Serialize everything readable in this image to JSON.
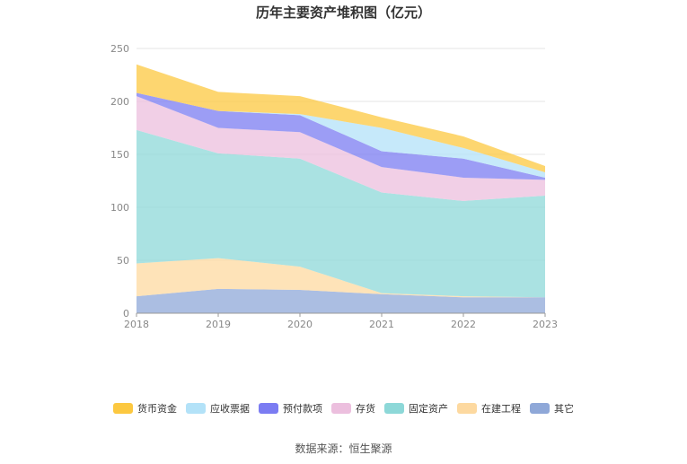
{
  "chart_data": {
    "type": "area",
    "stacked": true,
    "title": "历年主要资产堆积图（亿元）",
    "x": [
      "2018",
      "2019",
      "2020",
      "2021",
      "2022",
      "2023"
    ],
    "ylim": [
      0,
      250
    ],
    "yticks": [
      0,
      50,
      100,
      150,
      200,
      250
    ],
    "xlabel": "",
    "ylabel": "",
    "grid": true,
    "legend_position": "bottom",
    "series": [
      {
        "name": "其它",
        "color": "#8fa8d8",
        "values": [
          16,
          23,
          22,
          18,
          15,
          15
        ]
      },
      {
        "name": "在建工程",
        "color": "#fdd9a0",
        "values": [
          31,
          29,
          22,
          1,
          1,
          0
        ]
      },
      {
        "name": "固定资产",
        "color": "#8dd8d8",
        "values": [
          126,
          99,
          102,
          95,
          90,
          96
        ]
      },
      {
        "name": "存货",
        "color": "#ecbfde",
        "values": [
          32,
          24,
          25,
          24,
          22,
          15
        ]
      },
      {
        "name": "预付款项",
        "color": "#7b7cf2",
        "values": [
          3,
          16,
          16,
          15,
          18,
          2
        ]
      },
      {
        "name": "应收票据",
        "color": "#b3e2f8",
        "values": [
          0,
          0,
          1,
          22,
          10,
          5
        ]
      },
      {
        "name": "货币资金",
        "color": "#fcc840",
        "values": [
          27,
          18,
          17,
          10,
          11,
          6
        ]
      }
    ],
    "legend_order": [
      "货币资金",
      "应收票据",
      "预付款项",
      "存货",
      "固定资产",
      "在建工程",
      "其它"
    ]
  },
  "source": "数据来源：恒生聚源"
}
